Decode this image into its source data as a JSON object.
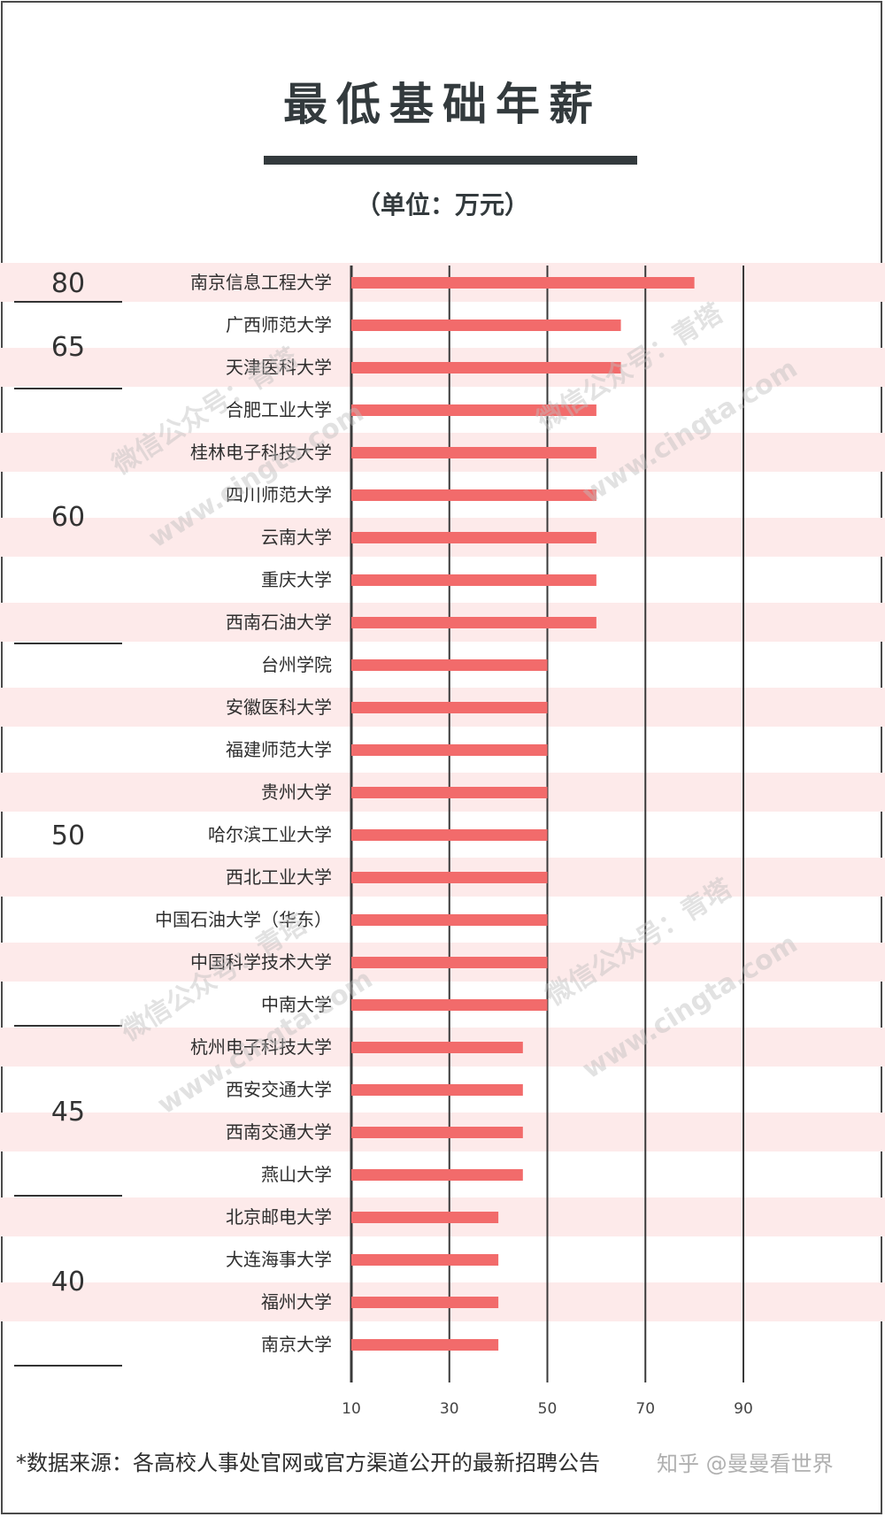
{
  "chart_data": {
    "type": "bar",
    "orientation": "horizontal",
    "title": "最低基础年薪",
    "subtitle": "（单位：万元）",
    "categories": [
      "南京信息工程大学",
      "广西师范大学",
      "天津医科大学",
      "合肥工业大学",
      "桂林电子科技大学",
      "四川师范大学",
      "云南大学",
      "重庆大学",
      "西南石油大学",
      "台州学院",
      "安徽医科大学",
      "福建师范大学",
      "贵州大学",
      "哈尔滨工业大学",
      "西北工业大学",
      "中国石油大学（华东）",
      "中国科学技术大学",
      "中南大学",
      "杭州电子科技大学",
      "西安交通大学",
      "西南交通大学",
      "燕山大学",
      "北京邮电大学",
      "大连海事大学",
      "福州大学",
      "南京大学"
    ],
    "values": [
      80,
      65,
      65,
      60,
      60,
      60,
      60,
      60,
      60,
      50,
      50,
      50,
      50,
      50,
      50,
      50,
      50,
      50,
      45,
      45,
      45,
      45,
      40,
      40,
      40,
      40
    ],
    "xlim": [
      10,
      90
    ],
    "xticks": [
      10,
      30,
      50,
      70,
      90
    ],
    "grid": true,
    "bar_color": "#f26b6b",
    "stripe_color": "#fdeaea",
    "groups": [
      {
        "label": "80",
        "start": 0,
        "end": 0
      },
      {
        "label": "65",
        "start": 1,
        "end": 2
      },
      {
        "label": "60",
        "start": 3,
        "end": 8
      },
      {
        "label": "50",
        "start": 9,
        "end": 17
      },
      {
        "label": "45",
        "start": 18,
        "end": 21
      },
      {
        "label": "40",
        "start": 22,
        "end": 25
      }
    ]
  },
  "footer": {
    "source": "*数据来源：各高校人事处官网或官方渠道公开的最新招聘公告",
    "credit": "知乎 @曼曼看世界"
  },
  "watermarks": [
    "微信公众号：青塔",
    "www.cingta.com"
  ]
}
